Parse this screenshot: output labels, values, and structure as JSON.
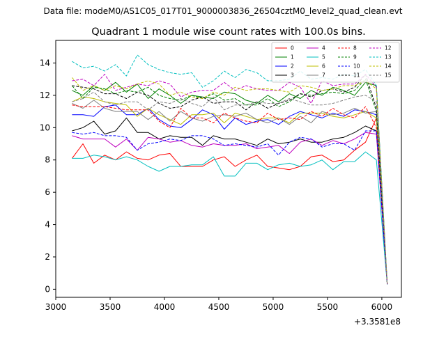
{
  "figure": {
    "suptitle": "Data file: modeM0/AS1C05_017T01_9000003836_26504cztM0_level2_quad_clean.evt"
  },
  "chart_data": {
    "type": "line",
    "title": "Quadrant 1 module wise count rates with 100.0s bins.",
    "xlabel": "",
    "ylabel": "",
    "x_offset_label": "+3.3581e8",
    "xlim": [
      3000,
      6180
    ],
    "ylim": [
      -0.5,
      15.4
    ],
    "xticks": [
      3000,
      3500,
      4000,
      4500,
      5000,
      5500,
      6000
    ],
    "yticks": [
      0,
      2,
      4,
      6,
      8,
      10,
      12,
      14
    ],
    "grid": false,
    "legend_position": "top-right",
    "x": [
      3150,
      3250,
      3350,
      3450,
      3550,
      3650,
      3750,
      3850,
      3950,
      4050,
      4150,
      4250,
      4350,
      4450,
      4550,
      4650,
      4750,
      4850,
      4950,
      5050,
      5150,
      5250,
      5350,
      5450,
      5550,
      5650,
      5750,
      5850,
      5950,
      6050
    ],
    "series": [
      {
        "name": "0",
        "color": "#ff0000",
        "dash": "solid",
        "values": [
          8.1,
          9.0,
          7.8,
          8.3,
          8.0,
          8.5,
          8.1,
          8.0,
          8.3,
          8.4,
          7.6,
          7.6,
          7.6,
          8.0,
          8.2,
          7.6,
          8.0,
          8.3,
          7.6,
          7.5,
          7.4,
          7.6,
          8.2,
          8.3,
          7.9,
          8.0,
          8.6,
          9.1,
          10.6,
          0.3
        ]
      },
      {
        "name": "1",
        "color": "#008000",
        "dash": "solid",
        "values": [
          12.3,
          12.0,
          12.6,
          12.3,
          12.8,
          12.2,
          12.7,
          11.8,
          12.4,
          12.0,
          11.5,
          12.0,
          11.9,
          11.8,
          12.2,
          12.1,
          11.7,
          11.5,
          12.0,
          11.6,
          12.1,
          11.8,
          12.3,
          12.0,
          12.5,
          12.3,
          12.0,
          12.8,
          12.6,
          0.3
        ]
      },
      {
        "name": "2",
        "color": "#0000ff",
        "dash": "solid",
        "values": [
          10.8,
          10.8,
          10.7,
          11.3,
          11.4,
          10.8,
          10.8,
          11.2,
          10.5,
          10.1,
          10.0,
          10.5,
          11.1,
          10.8,
          9.9,
          10.6,
          10.2,
          10.4,
          10.5,
          10.2,
          10.7,
          11.0,
          10.8,
          10.6,
          10.9,
          10.7,
          11.1,
          11.0,
          10.8,
          0.3
        ]
      },
      {
        "name": "3",
        "color": "#000000",
        "dash": "solid",
        "values": [
          9.8,
          10.0,
          10.4,
          9.6,
          9.8,
          10.6,
          9.7,
          9.7,
          9.3,
          9.5,
          9.4,
          9.4,
          8.9,
          9.5,
          9.3,
          9.3,
          9.1,
          8.9,
          9.3,
          9.0,
          9.1,
          9.3,
          9.1,
          9.1,
          9.3,
          9.4,
          9.7,
          10.1,
          9.8,
          0.3
        ]
      },
      {
        "name": "4",
        "color": "#bf00bf",
        "dash": "solid",
        "values": [
          9.5,
          9.3,
          9.3,
          9.3,
          8.8,
          9.3,
          8.6,
          9.4,
          9.3,
          9.1,
          9.2,
          8.9,
          8.8,
          9.0,
          8.9,
          8.9,
          9.0,
          8.7,
          8.8,
          8.9,
          8.4,
          9.1,
          9.3,
          8.9,
          9.2,
          9.0,
          9.3,
          9.7,
          9.6,
          0.3
        ]
      },
      {
        "name": "5",
        "color": "#00bfbf",
        "dash": "solid",
        "values": [
          8.1,
          8.1,
          8.3,
          8.2,
          8.0,
          8.2,
          8.0,
          7.6,
          7.3,
          7.6,
          7.6,
          7.7,
          7.7,
          8.2,
          7.0,
          7.0,
          7.8,
          7.8,
          7.4,
          7.7,
          7.8,
          7.6,
          7.7,
          8.0,
          7.4,
          7.9,
          7.9,
          8.5,
          8.0,
          0.3
        ]
      },
      {
        "name": "6",
        "color": "#bfbf00",
        "dash": "solid",
        "values": [
          11.6,
          11.9,
          11.8,
          11.6,
          11.5,
          11.4,
          10.7,
          11.2,
          10.8,
          10.5,
          10.2,
          10.8,
          10.8,
          10.9,
          10.3,
          10.9,
          10.7,
          10.5,
          10.6,
          10.6,
          10.3,
          10.9,
          10.9,
          10.9,
          10.7,
          10.6,
          10.8,
          11.0,
          10.6,
          0.3
        ]
      },
      {
        "name": "7",
        "color": "#808080",
        "dash": "solid",
        "values": [
          11.5,
          11.2,
          11.7,
          11.2,
          11.0,
          11.0,
          11.0,
          10.5,
          11.0,
          10.4,
          11.0,
          10.6,
          10.4,
          10.7,
          10.8,
          10.7,
          10.9,
          10.5,
          10.3,
          10.6,
          10.2,
          10.7,
          10.3,
          11.0,
          10.8,
          10.9,
          11.2,
          10.9,
          11.0,
          0.3
        ]
      },
      {
        "name": "8",
        "color": "#ff0000",
        "dash": "dashed",
        "values": [
          11.4,
          11.3,
          11.3,
          11.3,
          11.2,
          11.1,
          11.1,
          11.1,
          10.4,
          10.0,
          11.2,
          10.6,
          10.6,
          10.3,
          10.9,
          10.6,
          10.4,
          10.3,
          10.9,
          10.5,
          10.6,
          10.5,
          11.0,
          10.7,
          11.2,
          10.8,
          10.6,
          11.3,
          10.0,
          0.3
        ]
      },
      {
        "name": "9",
        "color": "#008000",
        "dash": "dashed",
        "values": [
          12.6,
          11.8,
          12.5,
          12.4,
          12.1,
          12.3,
          12.2,
          12.5,
          12.0,
          11.8,
          11.7,
          12.0,
          11.8,
          12.1,
          11.7,
          11.8,
          11.4,
          11.4,
          11.8,
          11.3,
          11.6,
          12.1,
          12.0,
          12.1,
          12.2,
          12.1,
          12.3,
          13.0,
          11.0,
          0.3
        ]
      },
      {
        "name": "10",
        "color": "#0000ff",
        "dash": "dashed",
        "values": [
          9.7,
          9.6,
          9.7,
          9.5,
          9.5,
          9.4,
          8.6,
          9.0,
          9.1,
          9.3,
          9.2,
          9.5,
          9.5,
          9.3,
          8.9,
          9.0,
          8.9,
          8.8,
          9.0,
          8.3,
          9.1,
          9.4,
          9.3,
          8.8,
          9.0,
          9.0,
          8.6,
          9.8,
          9.8,
          0.3
        ]
      },
      {
        "name": "11",
        "color": "#000000",
        "dash": "dashed",
        "values": [
          12.6,
          12.5,
          12.4,
          12.1,
          12.1,
          11.8,
          12.2,
          12.0,
          11.5,
          11.2,
          11.3,
          11.7,
          11.9,
          11.5,
          11.6,
          11.6,
          11.1,
          11.6,
          11.2,
          11.5,
          11.7,
          12.1,
          11.9,
          12.3,
          12.4,
          12.2,
          12.5,
          13.3,
          11.2,
          0.3
        ]
      },
      {
        "name": "12",
        "color": "#bf00bf",
        "dash": "dashed",
        "values": [
          12.9,
          13.0,
          12.6,
          13.3,
          12.3,
          12.5,
          12.7,
          12.6,
          12.9,
          12.7,
          11.9,
          12.2,
          12.3,
          12.3,
          12.8,
          12.3,
          12.6,
          12.4,
          12.3,
          12.3,
          12.8,
          12.5,
          11.5,
          12.9,
          12.6,
          12.7,
          12.7,
          13.3,
          12.5,
          0.3
        ]
      },
      {
        "name": "13",
        "color": "#00bfbf",
        "dash": "dashed",
        "values": [
          14.1,
          13.7,
          13.8,
          13.5,
          13.9,
          13.2,
          14.5,
          13.9,
          13.6,
          13.4,
          13.3,
          13.4,
          12.5,
          12.9,
          13.5,
          13.1,
          13.6,
          13.4,
          12.9,
          12.9,
          13.0,
          13.5,
          13.0,
          13.1,
          13.0,
          13.3,
          13.2,
          13.6,
          12.6,
          0.3
        ]
      },
      {
        "name": "14",
        "color": "#bfbf00",
        "dash": "dashed",
        "values": [
          13.1,
          12.3,
          12.6,
          12.3,
          12.6,
          12.4,
          12.7,
          12.9,
          12.7,
          12.0,
          12.2,
          11.9,
          11.8,
          12.2,
          12.0,
          12.5,
          12.3,
          12.4,
          12.4,
          12.3,
          12.2,
          12.6,
          12.5,
          12.3,
          12.4,
          12.6,
          12.6,
          12.9,
          12.4,
          0.3
        ]
      },
      {
        "name": "15",
        "color": "#808080",
        "dash": "dashed",
        "values": [
          11.6,
          11.8,
          12.2,
          11.6,
          11.4,
          11.6,
          11.6,
          11.1,
          11.6,
          11.5,
          11.8,
          11.5,
          11.3,
          11.9,
          11.1,
          11.4,
          11.4,
          11.6,
          11.5,
          11.5,
          11.8,
          11.6,
          11.4,
          11.4,
          11.5,
          11.7,
          11.9,
          12.0,
          11.6,
          0.3
        ]
      }
    ]
  }
}
